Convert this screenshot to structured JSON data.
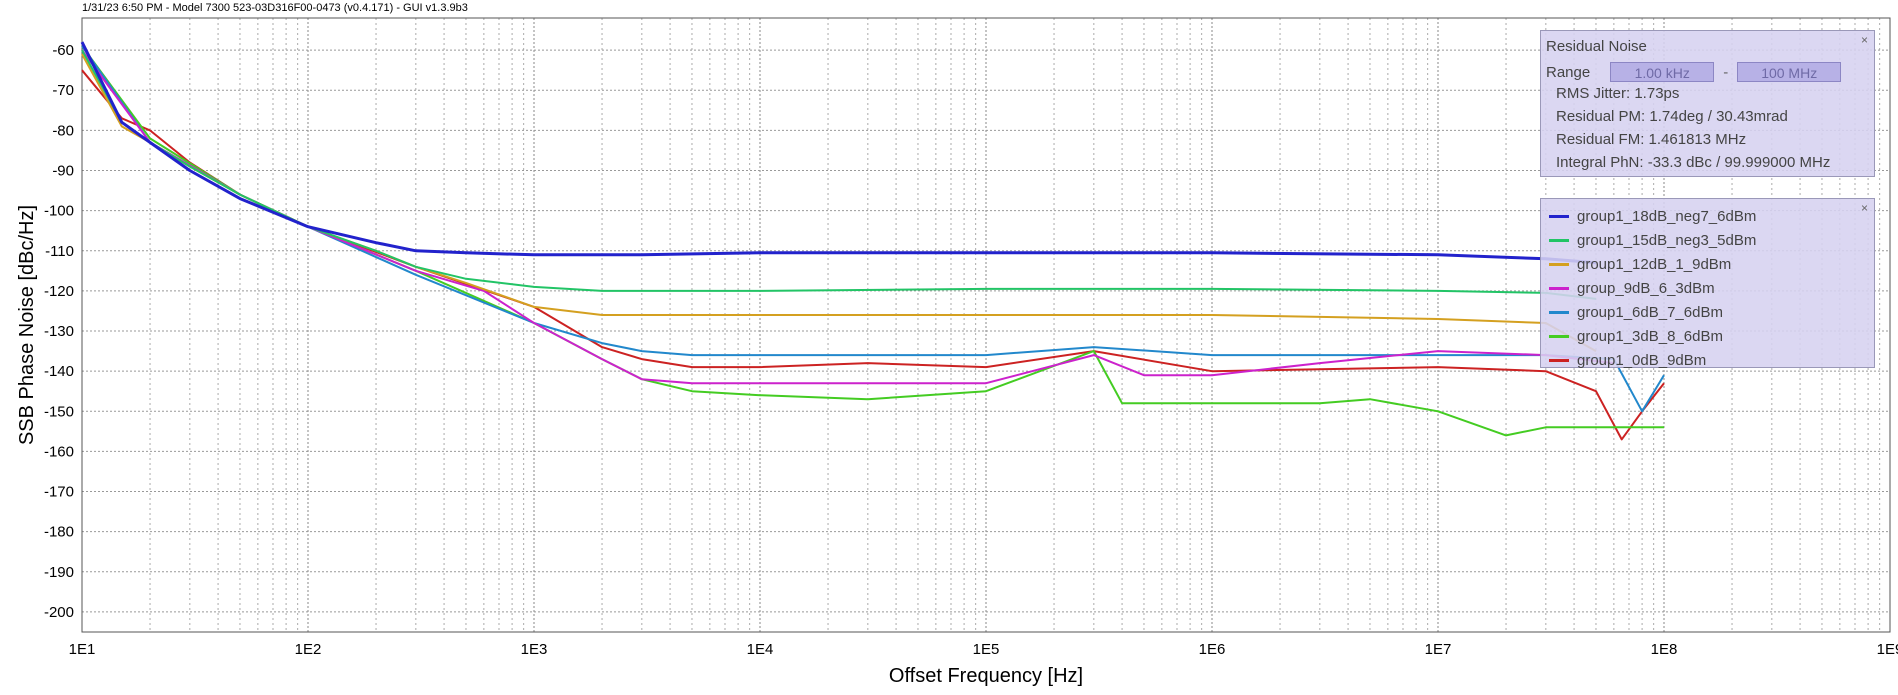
{
  "header": {
    "title": "1/31/23 6:50 PM - Model 7300 523-03D316F00-0473 (v0.4.171) - GUI v1.3.9b3"
  },
  "chart_data": {
    "type": "line",
    "xscale": "log",
    "xlim": [
      10,
      1000000000
    ],
    "ylim": [
      -205,
      -52
    ],
    "grid": true,
    "xlabel": "Offset Frequency [Hz]",
    "ylabel": "SSB Phase Noise [dBc/Hz]",
    "x_ticks": [
      "1E1",
      "1E2",
      "1E3",
      "1E4",
      "1E5",
      "1E6",
      "1E7",
      "1E8",
      "1E9"
    ],
    "y_ticks": [
      -60,
      -70,
      -80,
      -90,
      -100,
      -110,
      -120,
      -130,
      -140,
      -150,
      -160,
      -170,
      -180,
      -190,
      -200
    ],
    "legend_position": "right",
    "series": [
      {
        "name": "group1_18dB_neg7_6dBm",
        "color": "#2222cc",
        "x": [
          10,
          15,
          20,
          30,
          50,
          100,
          200,
          300,
          500,
          1000,
          3000,
          10000,
          100000,
          1000000,
          10000000,
          30000000,
          50000000
        ],
        "y": [
          -58,
          -78,
          -83,
          -90,
          -97,
          -104,
          -108,
          -110,
          -110.5,
          -111,
          -111,
          -110.5,
          -110.5,
          -110.5,
          -111,
          -112,
          -113
        ]
      },
      {
        "name": "group1_15dB_neg3_5dBm",
        "color": "#22c466",
        "x": [
          10,
          15,
          20,
          30,
          50,
          100,
          200,
          300,
          500,
          1000,
          2000,
          10000,
          100000,
          1000000,
          10000000,
          30000000,
          50000000
        ],
        "y": [
          -60,
          -78,
          -83,
          -89,
          -96,
          -104,
          -110,
          -114,
          -117,
          -119,
          -120,
          -120,
          -119.5,
          -119.5,
          -120,
          -120.5,
          -122
        ]
      },
      {
        "name": "group1_12dB_1_9dBm",
        "color": "#d4a020",
        "x": [
          10,
          15,
          20,
          30,
          50,
          100,
          200,
          300,
          500,
          1000,
          2000,
          10000,
          100000,
          1000000,
          10000000,
          30000000,
          50000000
        ],
        "y": [
          -61,
          -79,
          -83,
          -89,
          -96,
          -104,
          -110,
          -114,
          -118,
          -124,
          -126,
          -126,
          -126,
          -126,
          -127,
          -128,
          -135
        ]
      },
      {
        "name": "group_9dB_6_3dBm",
        "color": "#cc22cc",
        "x": [
          10,
          20,
          50,
          100,
          300,
          600,
          1000,
          2000,
          3000,
          5000,
          10000,
          30000,
          100000,
          300000,
          500000,
          1000000,
          3000000,
          10000000,
          30000000,
          60000000
        ],
        "y": [
          -60,
          -83,
          -96,
          -104,
          -115,
          -120,
          -128,
          -137,
          -142,
          -143,
          -143,
          -143,
          -143,
          -136,
          -141,
          -141,
          -138,
          -135,
          -136,
          -138
        ]
      },
      {
        "name": "group1_6dB_7_6dBm",
        "color": "#2288cc",
        "x": [
          10,
          20,
          50,
          100,
          300,
          1000,
          2000,
          3000,
          5000,
          10000,
          100000,
          300000,
          1000000,
          10000000,
          30000000,
          60000000,
          80000000,
          100000000
        ],
        "y": [
          -59,
          -83,
          -96,
          -104,
          -116,
          -128,
          -133,
          -135,
          -136,
          -136,
          -136,
          -134,
          -136,
          -136,
          -136,
          -137,
          -150,
          -141
        ]
      },
      {
        "name": "group1_3dB_8_6dBm",
        "color": "#44cc22",
        "x": [
          10,
          20,
          50,
          100,
          300,
          1000,
          2000,
          3000,
          5000,
          10000,
          30000,
          100000,
          300000,
          400000,
          1000000,
          3000000,
          5000000,
          10000000,
          20000000,
          30000000,
          60000000,
          100000000
        ],
        "y": [
          -59,
          -82,
          -96,
          -104,
          -115,
          -128,
          -137,
          -142,
          -145,
          -146,
          -147,
          -145,
          -135,
          -148,
          -148,
          -148,
          -147,
          -150,
          -156,
          -154,
          -154,
          -154
        ]
      },
      {
        "name": "group1_0dB_9dBm",
        "color": "#cc2222",
        "x": [
          10,
          15,
          20,
          30,
          50,
          100,
          300,
          1000,
          2000,
          3000,
          5000,
          10000,
          30000,
          100000,
          300000,
          1000000,
          10000000,
          30000000,
          50000000,
          65000000,
          80000000,
          100000000
        ],
        "y": [
          -65,
          -77,
          -80,
          -88,
          -96,
          -104,
          -114,
          -124,
          -134,
          -137,
          -139,
          -139,
          -138,
          -139,
          -135,
          -140,
          -139,
          -140,
          -145,
          -157,
          -150,
          -143
        ]
      }
    ]
  },
  "noise_panel": {
    "title": "Residual Noise",
    "range_label": "Range",
    "range_start": "1.00 kHz",
    "range_sep": "-",
    "range_end": "100 MHz",
    "rms_jitter": "RMS Jitter: 1.73ps",
    "residual_pm": "Residual PM: 1.74deg / 30.43mrad",
    "residual_fm": "Residual FM: 1.461813 MHz",
    "integral_phn": "Integral PhN: -33.3 dBc / 99.999000 MHz",
    "close_glyph": "×"
  },
  "legend": {
    "close_glyph": "×"
  }
}
